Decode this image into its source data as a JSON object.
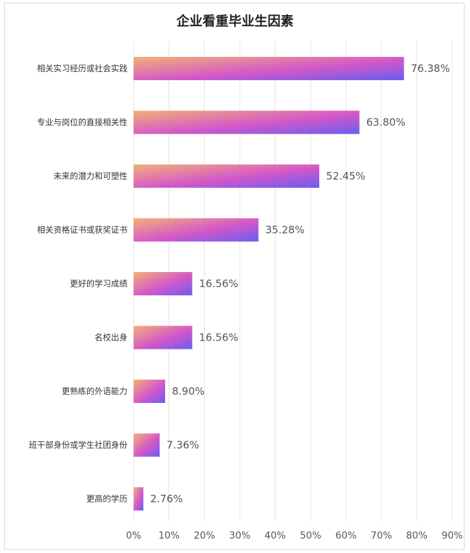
{
  "chart_data": {
    "type": "bar",
    "orientation": "horizontal",
    "title": "企业看重毕业生因素",
    "xlabel": "",
    "ylabel": "",
    "categories": [
      "相关实习经历或社会实践",
      "专业与岗位的直接相关性",
      "未来的潜力和可塑性",
      "相关资格证书或获奖证书",
      "更好的学习成绩",
      "名校出身",
      "更熟练的外语能力",
      "班干部身份或学生社团身份",
      "更高的学历"
    ],
    "values": [
      76.38,
      63.8,
      52.45,
      35.28,
      16.56,
      16.56,
      8.9,
      7.36,
      2.76
    ],
    "value_labels": [
      "76.38%",
      "63.80%",
      "52.45%",
      "35.28%",
      "16.56%",
      "16.56%",
      "8.90%",
      "7.36%",
      "2.76%"
    ],
    "xlim": [
      0,
      90
    ],
    "xticks": [
      "0%",
      "10%",
      "20%",
      "30%",
      "40%",
      "50%",
      "60%",
      "70%",
      "80%",
      "90%"
    ],
    "grid": "vertical",
    "colors": {
      "bar_start": "#f3b178",
      "bar_mid": "#d458c8",
      "bar_end": "#6b5cf0",
      "grid": "#e4e4e4"
    }
  }
}
